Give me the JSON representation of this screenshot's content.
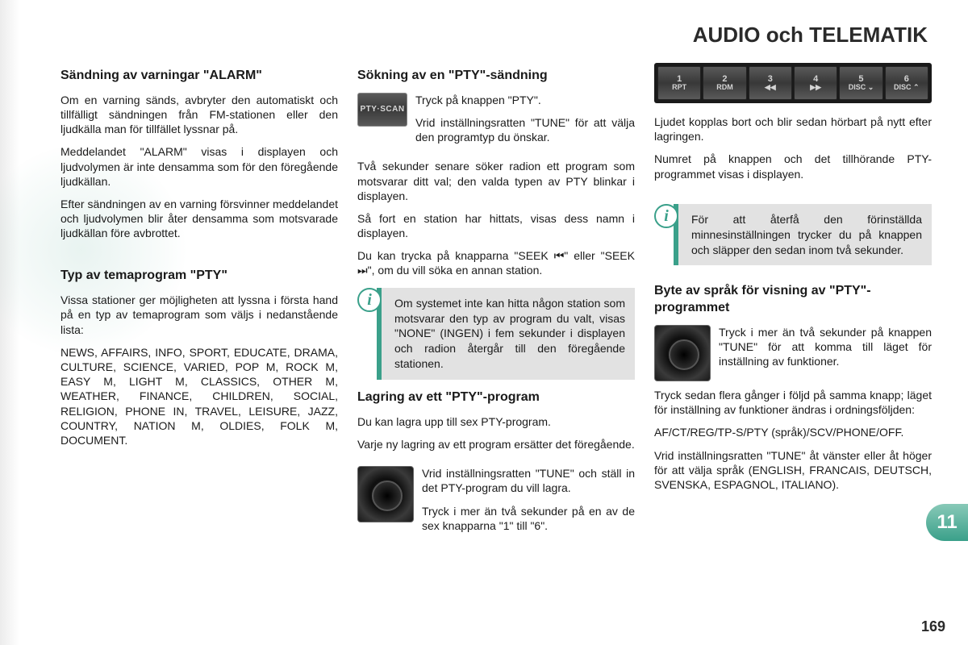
{
  "header": "AUDIO och TELEMATIK",
  "chapter": "11",
  "pageNumber": "169",
  "col1": {
    "h1": "Sändning av varningar \"ALARM\"",
    "p1": "Om en varning sänds, avbryter den automatiskt och tillfälligt sändningen från FM-stationen eller den ljudkälla man för tillfället lyssnar på.",
    "p2": "Meddelandet \"ALARM\" visas i displayen och ljudvolymen är inte densamma som för den föregående ljudkällan.",
    "p3": "Efter sändningen av en varning försvinner meddelandet och ljudvolymen blir åter densamma som motsvarade ljudkällan före avbrottet.",
    "h2": "Typ av temaprogram \"PTY\"",
    "p4": "Vissa stationer ger möjligheten att lyssna i första hand på en typ av temaprogram som väljs i nedanstående lista:",
    "p5": "NEWS, AFFAIRS, INFO, SPORT, EDUCATE, DRAMA, CULTURE, SCIENCE, VARIED, POP M, ROCK M, EASY M, LIGHT M, CLASSICS, OTHER M, WEATHER, FINANCE, CHILDREN, SOCIAL, RELIGION, PHONE IN, TRAVEL, LEISURE, JAZZ, COUNTRY, NATION M, OLDIES, FOLK M, DOCUMENT."
  },
  "col2": {
    "h1": "Sökning av en \"PTY\"-sändning",
    "iconLabel": "PTY·SCAN",
    "ir1a": "Tryck på knappen \"PTY\".",
    "ir1b": "Vrid inställningsratten \"TUNE\" för att välja den programtyp du önskar.",
    "p1": "Två sekunder senare söker radion ett program som motsvarar ditt val; den valda typen av PTY blinkar i displayen.",
    "p2": "Så fort en station har hittats, visas dess namn i displayen.",
    "p3": "Du kan trycka på knapparna \"SEEK ⏮\" eller \"SEEK ⏭\", om du vill söka en annan station.",
    "info": "Om systemet inte kan hitta någon station som motsvarar den typ av program du valt, visas \"NONE\" (INGEN) i fem sekunder i displayen och radion återgår till den föregående stationen.",
    "h2": "Lagring av ett \"PTY\"-program",
    "p4": "Du kan lagra upp till sex PTY-program.",
    "p5": "Varje ny lagring av ett program ersätter det föregående.",
    "ir2a": "Vrid inställningsratten \"TUNE\" och ställ in det PTY-program du vill lagra.",
    "ir2b": "Tryck i mer än två sekunder på en av de sex knapparna \"1\" till \"6\"."
  },
  "col3": {
    "buttons": [
      {
        "n": "1",
        "t": "RPT"
      },
      {
        "n": "2",
        "t": "RDM"
      },
      {
        "n": "3",
        "t": "◀◀"
      },
      {
        "n": "4",
        "t": "▶▶"
      },
      {
        "n": "5",
        "t": "DISC ⌄"
      },
      {
        "n": "6",
        "t": "DISC ⌃"
      }
    ],
    "p1": "Ljudet kopplas bort och blir sedan hörbart på nytt efter lagringen.",
    "p2": "Numret på knappen och det tillhörande PTY-programmet visas i displayen.",
    "info": "För att återfå den förinställda minnesinställningen trycker du på knappen och släpper den sedan inom två sekunder.",
    "h1": "Byte av språk för visning av \"PTY\"-programmet",
    "ir1": "Tryck i mer än två sekunder på knappen \"TUNE\" för att komma till läget för inställning av funktioner.",
    "p3": "Tryck sedan flera gånger i följd på samma knapp; läget för inställning av funktioner ändras i ordningsföljden:",
    "p4": "AF/CT/REG/TP-S/PTY (språk)/SCV/PHONE/OFF.",
    "p5": "Vrid inställningsratten \"TUNE\" åt vänster eller åt höger för att välja språk (ENGLISH, FRANCAIS, DEUTSCH, SVENSKA, ESPAGNOL, ITALIANO)."
  }
}
